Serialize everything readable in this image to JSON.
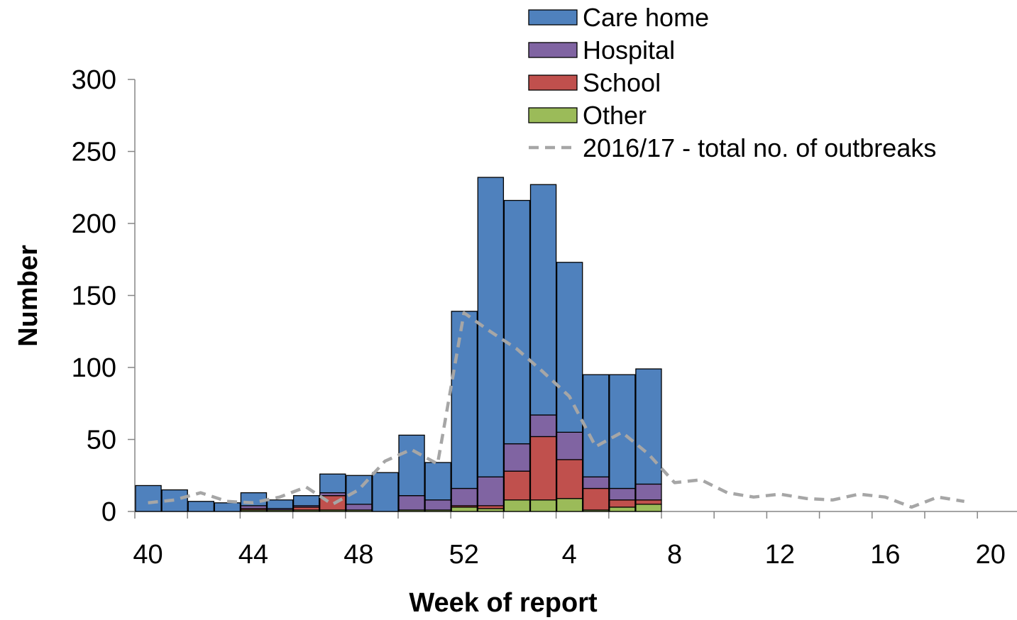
{
  "chart_data": {
    "type": "bar",
    "stacked": true,
    "xlabel": "Week of report",
    "ylabel": "Number",
    "ylim": [
      0,
      300
    ],
    "yticks": [
      0,
      50,
      100,
      150,
      200,
      250,
      300
    ],
    "xtick_labels": [
      "40",
      "44",
      "48",
      "52",
      "4",
      "8",
      "12",
      "16",
      "20"
    ],
    "weeks": [
      40,
      41,
      42,
      43,
      44,
      45,
      46,
      47,
      48,
      49,
      50,
      51,
      52,
      53,
      1,
      2,
      3,
      4,
      5,
      6,
      7,
      8,
      9,
      10,
      11,
      12,
      13,
      14,
      15,
      16,
      17,
      18,
      19,
      20
    ],
    "series": [
      {
        "name": "Care home",
        "color": "#4F81BD",
        "values": [
          18,
          15,
          7,
          6,
          9,
          6,
          7,
          13,
          20,
          27,
          42,
          26,
          123,
          208,
          169,
          160,
          118,
          71,
          79,
          80
        ]
      },
      {
        "name": "Hospital",
        "color": "#8064A2",
        "values": [
          0,
          0,
          0,
          0,
          2,
          1,
          1,
          2,
          4,
          0,
          10,
          7,
          12,
          20,
          19,
          15,
          19,
          8,
          8,
          11
        ]
      },
      {
        "name": "School",
        "color": "#C0504D",
        "values": [
          0,
          0,
          0,
          0,
          1,
          0,
          2,
          10,
          0,
          0,
          0,
          0,
          1,
          2,
          20,
          44,
          27,
          15,
          5,
          3
        ]
      },
      {
        "name": "Other",
        "color": "#9BBB59",
        "values": [
          0,
          0,
          0,
          0,
          1,
          1,
          1,
          1,
          1,
          0,
          1,
          1,
          3,
          2,
          8,
          8,
          9,
          1,
          3,
          5
        ]
      }
    ],
    "line": {
      "name": "2016/17 - total no. of outbreaks",
      "color": "#A6A6A6",
      "values": [
        6,
        8,
        13,
        7,
        6,
        10,
        17,
        5,
        15,
        35,
        43,
        33,
        138,
        125,
        113,
        97,
        80,
        45,
        55,
        40,
        20,
        22,
        13,
        10,
        12,
        9,
        8,
        12,
        10,
        3,
        10,
        7
      ]
    },
    "legend_position": "top-right"
  }
}
